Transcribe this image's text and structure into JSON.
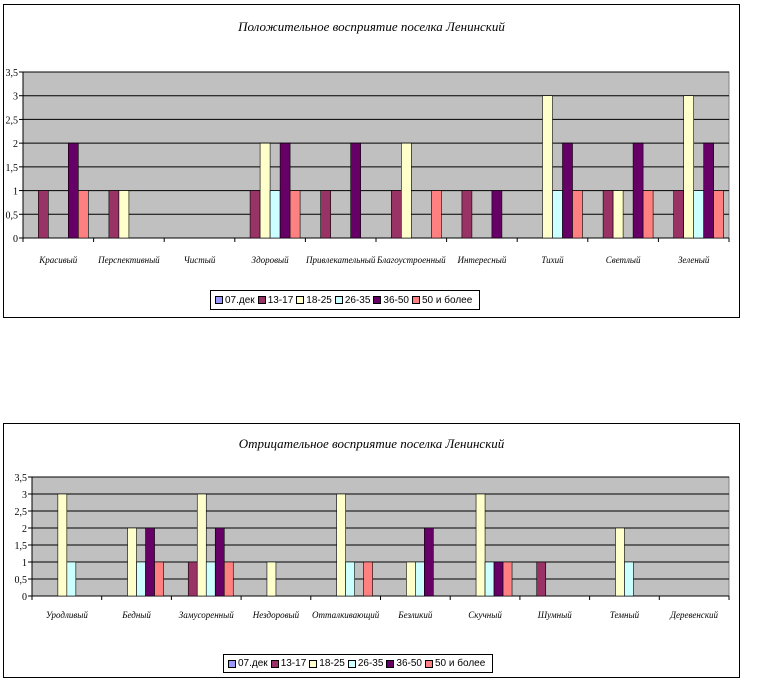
{
  "chart_data": [
    {
      "type": "bar",
      "title": "Положительное восприятие поселка Ленинский",
      "categories": [
        "Красивый",
        "Перспективный",
        "Чистый",
        "Здоровый",
        "Привлекательный",
        "Благоустроенный",
        "Интересный",
        "Тихий",
        "Светлый",
        "Зеленый"
      ],
      "ylim": [
        0,
        3.5
      ],
      "yticks": [
        "0",
        "0,5",
        "1",
        "1,5",
        "2",
        "2,5",
        "3",
        "3,5"
      ],
      "grid": true,
      "legend_position": "bottom",
      "series": [
        {
          "name": "07.дек",
          "color": "#9999ff",
          "values": [
            0,
            0,
            0,
            0,
            0,
            0,
            0,
            0,
            0,
            0
          ]
        },
        {
          "name": "13-17",
          "color": "#993366",
          "values": [
            1,
            1,
            0,
            1,
            1,
            1,
            1,
            0,
            1,
            1
          ]
        },
        {
          "name": "18-25",
          "color": "#ffffcc",
          "values": [
            0,
            1,
            0,
            2,
            0,
            2,
            0,
            3,
            1,
            3
          ]
        },
        {
          "name": "26-35",
          "color": "#ccffff",
          "values": [
            0,
            0,
            0,
            1,
            0,
            0,
            0,
            1,
            0,
            1
          ]
        },
        {
          "name": "36-50",
          "color": "#660066",
          "values": [
            2,
            0,
            0,
            2,
            2,
            0,
            1,
            2,
            2,
            2
          ]
        },
        {
          "name": "50 и более",
          "color": "#ff8080",
          "values": [
            1,
            0,
            0,
            1,
            0,
            1,
            0,
            1,
            1,
            1
          ]
        }
      ]
    },
    {
      "type": "bar",
      "title": "Отрицательное восприятие поселка Ленинский",
      "categories": [
        "Уродливый",
        "Бедный",
        "Замусоренный",
        "Нездоровый",
        "Отталкивающий",
        "Безликий",
        "Скучный",
        "Шумный",
        "Темный",
        "Деревенский"
      ],
      "ylim": [
        0,
        3.5
      ],
      "yticks": [
        "0",
        "0,5",
        "1",
        "1,5",
        "2",
        "2,5",
        "3",
        "3,5"
      ],
      "grid": true,
      "legend_position": "bottom",
      "series": [
        {
          "name": "07.дек",
          "color": "#9999ff",
          "values": [
            0,
            0,
            0,
            0,
            0,
            0,
            0,
            0,
            0,
            0
          ]
        },
        {
          "name": "13-17",
          "color": "#993366",
          "values": [
            0,
            0,
            1,
            0,
            0,
            0,
            0,
            1,
            0,
            0
          ]
        },
        {
          "name": "18-25",
          "color": "#ffffcc",
          "values": [
            3,
            2,
            3,
            1,
            3,
            1,
            3,
            0,
            2,
            0
          ]
        },
        {
          "name": "26-35",
          "color": "#ccffff",
          "values": [
            1,
            1,
            1,
            0,
            1,
            1,
            1,
            0,
            1,
            0
          ]
        },
        {
          "name": "36-50",
          "color": "#660066",
          "values": [
            0,
            2,
            2,
            0,
            0,
            2,
            1,
            0,
            0,
            0
          ]
        },
        {
          "name": "50 и более",
          "color": "#ff8080",
          "values": [
            0,
            1,
            1,
            0,
            1,
            0,
            1,
            0,
            0,
            0
          ]
        }
      ]
    }
  ]
}
